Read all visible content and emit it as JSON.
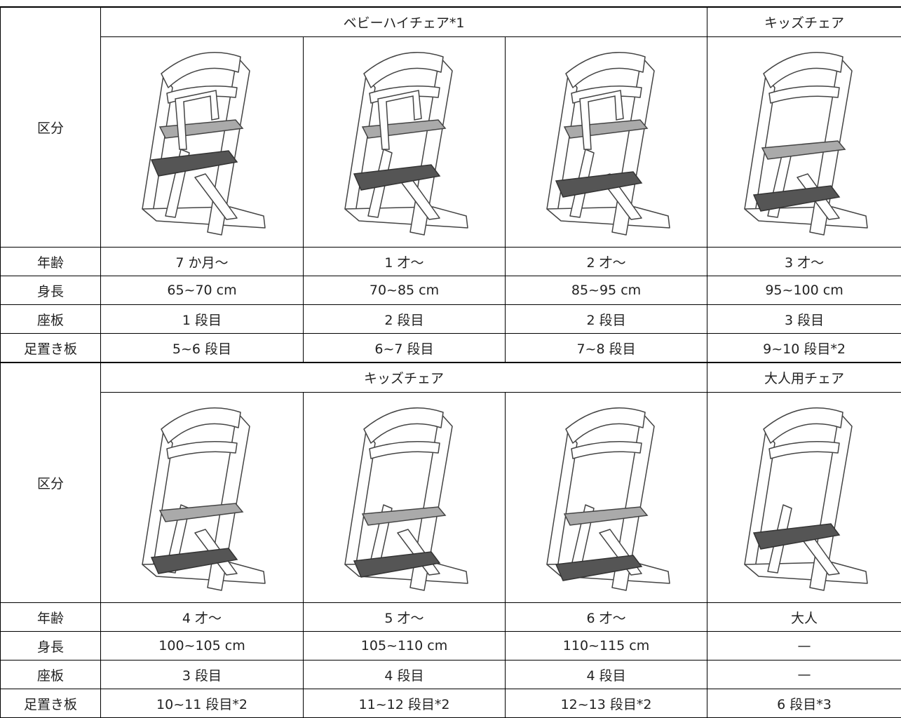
{
  "sections": [
    {
      "category_label": "区分",
      "groups": [
        "ベビーハイチェア*1",
        "キッズチェア"
      ],
      "rows": [
        {
          "label": "年齢",
          "cells": [
            "7 か月～",
            "1 才～",
            "2 才～",
            "3 才～"
          ]
        },
        {
          "label": "身長",
          "cells": [
            "65~70 cm",
            "70~85 cm",
            "85~95 cm",
            "95~100 cm"
          ]
        },
        {
          "label": "座板",
          "cells": [
            "1 段目",
            "2 段目",
            "2 段目",
            "3 段目"
          ]
        },
        {
          "label": "足置き板",
          "cells": [
            "5~6 段目",
            "6~7 段目",
            "7~8 段目",
            "9~10 段目*2"
          ]
        }
      ]
    },
    {
      "category_label": "区分",
      "groups": [
        "キッズチェア",
        "大人用チェア"
      ],
      "rows": [
        {
          "label": "年齢",
          "cells": [
            "4 才～",
            "5 才～",
            "6 才～",
            "大人"
          ]
        },
        {
          "label": "身長",
          "cells": [
            "100~105 cm",
            "105~110 cm",
            "110~115 cm",
            "—"
          ]
        },
        {
          "label": "座板",
          "cells": [
            "3 段目",
            "4 段目",
            "4 段目",
            "—"
          ]
        },
        {
          "label": "足置き板",
          "cells": [
            "10~11 段目*2",
            "11~12 段目*2",
            "12~13 段目*2",
            "6 段目*3"
          ]
        }
      ]
    }
  ]
}
